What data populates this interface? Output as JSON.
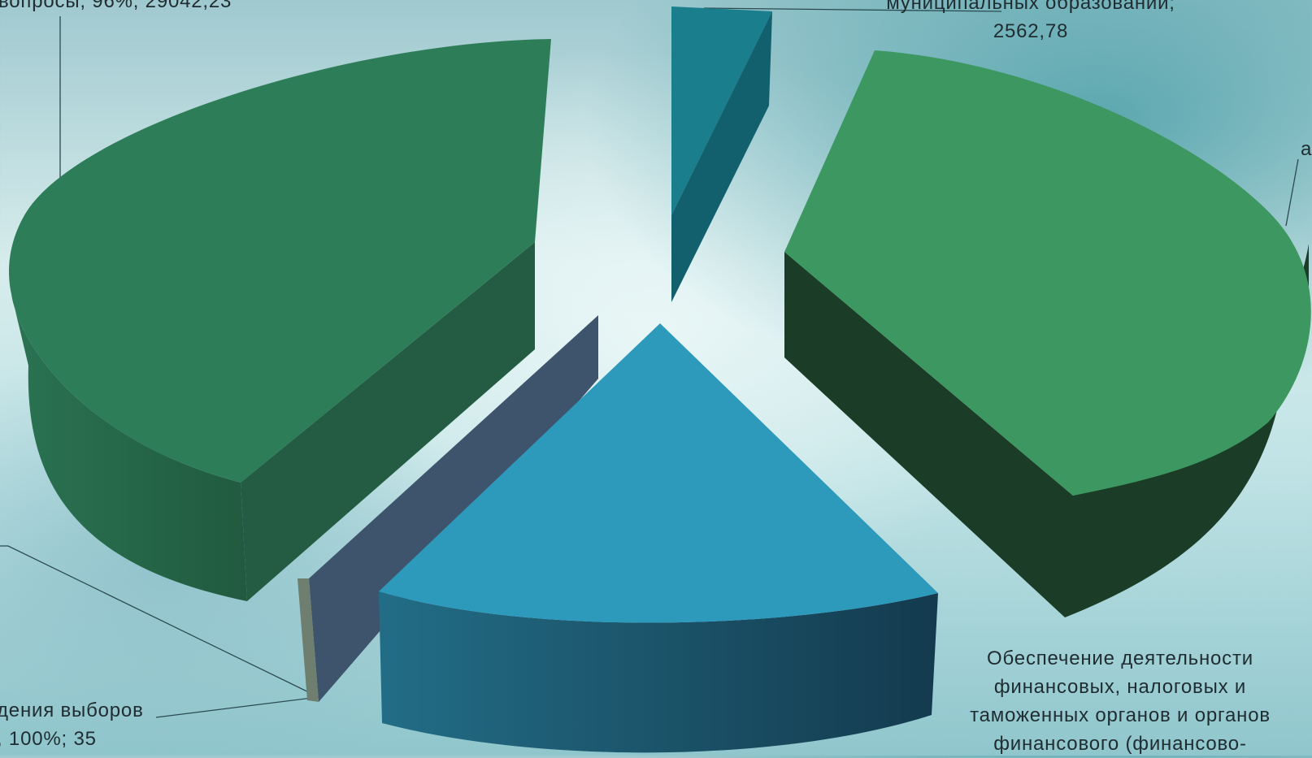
{
  "chart_data": {
    "type": "pie",
    "style": "3d-exploded",
    "slices": [
      {
        "label_lines": [
          "вопросы; 96%; 29042,23"
        ],
        "color": "#2e7d59"
      },
      {
        "label_lines": [
          "муниципальных образований;",
          "2562,78"
        ],
        "value": 2562.78,
        "color": "#1a7e8c"
      },
      {
        "label_lines": [
          "а"
        ],
        "color": "#3d9760"
      },
      {
        "label_lines": [
          "Обеспечение деятельности",
          "финансовых, налоговых и",
          "таможенных органов и органов",
          "финансового (финансово-"
        ],
        "color": "#2e9abb"
      },
      {
        "label_lines": [
          "дения выборов",
          ", 100%; 35"
        ],
        "value": 35,
        "color": "#3e536c"
      }
    ]
  }
}
